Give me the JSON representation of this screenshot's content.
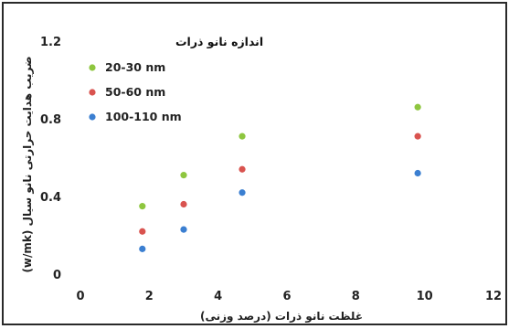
{
  "chart_data": {
    "type": "scatter",
    "title": "",
    "xlabel": "غلظت نانو ذرات (درصد وزنی)",
    "ylabel": "ضریب هدایت حرارتی نانو سیال (w/mk)",
    "xlim": [
      0,
      12
    ],
    "ylim": [
      0,
      1.2
    ],
    "x_ticks": [
      "0",
      "2",
      "4",
      "6",
      "8",
      "10",
      "12"
    ],
    "y_ticks": [
      "0",
      "0.4",
      "0.8",
      "1.2"
    ],
    "grid": false,
    "legend": {
      "title": "اندازه نانو ذرات",
      "position": "top-left"
    },
    "series": [
      {
        "name": "20-30 nm",
        "color": "#8ec63f",
        "x": [
          1.8,
          3.0,
          4.7,
          9.8
        ],
        "y": [
          0.35,
          0.51,
          0.71,
          0.86
        ]
      },
      {
        "name": "50-60 nm",
        "color": "#d9534f",
        "x": [
          1.8,
          3.0,
          4.7,
          9.8
        ],
        "y": [
          0.22,
          0.36,
          0.54,
          0.71
        ]
      },
      {
        "name": "100-110 nm",
        "color": "#3b7fd1",
        "x": [
          1.8,
          3.0,
          4.7,
          9.8
        ],
        "y": [
          0.13,
          0.23,
          0.42,
          0.52
        ]
      }
    ]
  }
}
